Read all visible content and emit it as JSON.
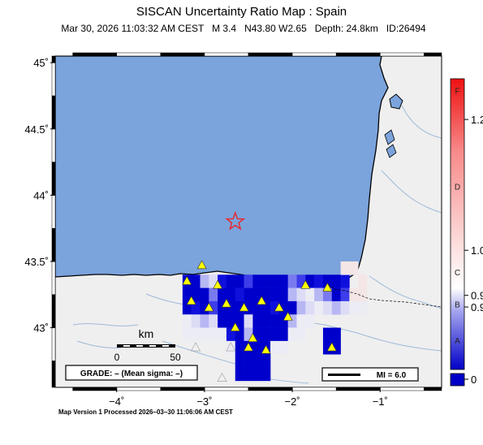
{
  "header": {
    "title": "SISCAN Uncertainty Ratio Map : Spain",
    "subtitle": "Mar 30, 2026 11:03:32 AM CEST   M 3.4   N43.80 W2.65   Depth: 24.8km   ID:26494"
  },
  "map": {
    "lat_range": [
      42.55,
      45.05
    ],
    "lon_range": [
      -4.7,
      -0.3
    ],
    "lat_ticks": [
      {
        "value": 45.0,
        "label": "45˚"
      },
      {
        "value": 44.5,
        "label": "44.5˚"
      },
      {
        "value": 44.0,
        "label": "44˚"
      },
      {
        "value": 43.5,
        "label": "43.5˚"
      },
      {
        "value": 43.0,
        "label": "43˚"
      }
    ],
    "lon_ticks": [
      {
        "value": -4,
        "label": "−4˚"
      },
      {
        "value": -3,
        "label": "−3˚"
      },
      {
        "value": -2,
        "label": "−2˚"
      },
      {
        "value": -1,
        "label": "−1˚"
      }
    ],
    "epicenter": {
      "lat": 43.8,
      "lon": -2.65
    },
    "colors": {
      "sea": "#7ba3dc",
      "land": "#efefef",
      "coast": "#000000",
      "river": "#9fb9d9",
      "epicenter": "#e8272a",
      "station": "#ffff00",
      "station_outline": "#333333"
    },
    "scalebar": {
      "title": "km",
      "labels": [
        "0",
        "50"
      ]
    },
    "grade_text": "GRADE: – (Mean sigma: –)",
    "mi_text": "MI = 6.0"
  },
  "colorbar": {
    "right_labels": [
      {
        "text": "1.2",
        "frac": 0.86
      },
      {
        "text": "1.0",
        "frac": 0.41
      },
      {
        "text": "0.9",
        "frac": 0.255
      },
      {
        "text": "0.9",
        "frac": 0.215
      },
      {
        "text": "0",
        "frac": -0.02
      }
    ],
    "grade_letters": [
      {
        "text": "F",
        "frac": 0.96
      },
      {
        "text": "D",
        "frac": 0.63
      },
      {
        "text": "C",
        "frac": 0.335
      },
      {
        "text": "B",
        "frac": 0.225
      },
      {
        "text": "A",
        "frac": 0.1
      }
    ]
  },
  "footer": {
    "processed": "Map Version 1 Processed 2026–03–30 11:06:06 AM CEST"
  }
}
